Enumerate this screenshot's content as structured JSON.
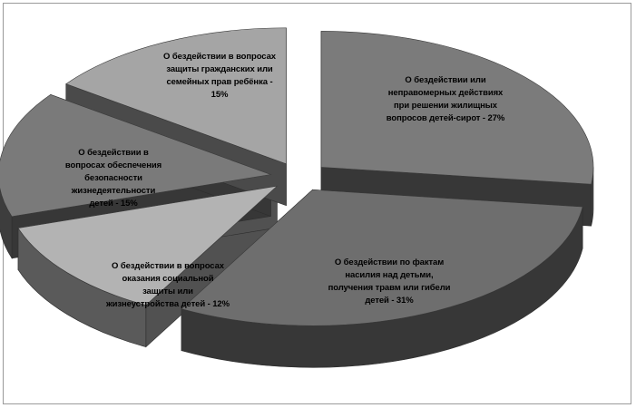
{
  "chart_data": {
    "type": "pie",
    "style": "3d-exploded",
    "title": "",
    "legend": "none",
    "slices": [
      {
        "label": "О бездействии или неправомерных действиях при решении жилищных вопросов детей-сирот - 27%",
        "value": 27,
        "color": "#7b7b7b"
      },
      {
        "label": "О бездействии по фактам насилия над детьми, получения травм или гибели детей - 31%",
        "value": 31,
        "color": "#6e6e6e"
      },
      {
        "label": "О бездействии в вопросах оказания социальной защиты или жизнеустройства детей - 12%",
        "value": 12,
        "color": "#b3b3b3"
      },
      {
        "label": "О бездействии в вопросах обеспечения безопасности жизнедеятельности детей - 15%",
        "value": 15,
        "color": "#7a7a7a"
      },
      {
        "label": "О бездействии в вопросах защиты гражданских или семейных прав ребёнка - 15%",
        "value": 15,
        "color": "#a5a5a5"
      }
    ]
  }
}
